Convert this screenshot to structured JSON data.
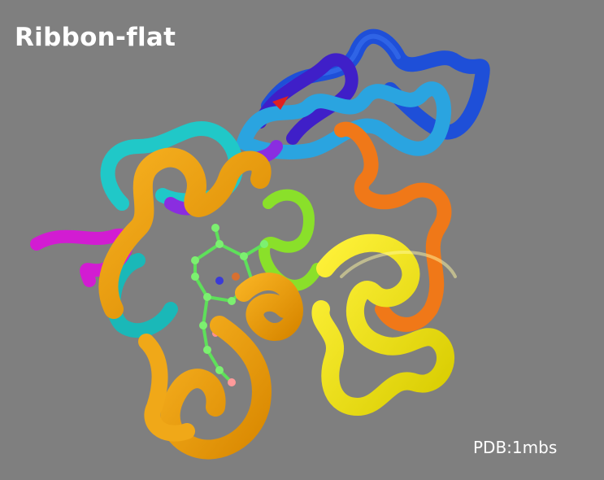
{
  "title": "Ribbon-flat",
  "credit": "PDB:1mbs",
  "colors": {
    "background": "#7f7f7f",
    "text": "#ffffff"
  }
}
